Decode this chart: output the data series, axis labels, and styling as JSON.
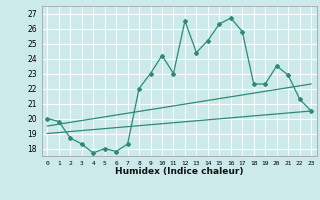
{
  "xlabel": "Humidex (Indice chaleur)",
  "bg_color": "#cceaea",
  "grid_color": "#ffffff",
  "line_color": "#2d8b72",
  "xlim": [
    -0.5,
    23.5
  ],
  "ylim": [
    17.5,
    27.5
  ],
  "xticks": [
    0,
    1,
    2,
    3,
    4,
    5,
    6,
    7,
    8,
    9,
    10,
    11,
    12,
    13,
    14,
    15,
    16,
    17,
    18,
    19,
    20,
    21,
    22,
    23
  ],
  "yticks": [
    18,
    19,
    20,
    21,
    22,
    23,
    24,
    25,
    26,
    27
  ],
  "main_x": [
    0,
    1,
    2,
    3,
    4,
    5,
    6,
    7,
    8,
    9,
    10,
    11,
    12,
    13,
    14,
    15,
    16,
    17,
    18,
    19,
    20,
    21,
    22,
    23
  ],
  "main_y": [
    20.0,
    19.8,
    18.7,
    18.3,
    17.7,
    18.0,
    17.8,
    18.3,
    22.0,
    23.0,
    24.2,
    23.0,
    26.5,
    24.4,
    25.2,
    26.3,
    26.7,
    25.8,
    22.3,
    22.3,
    23.5,
    22.9,
    21.3,
    20.5
  ],
  "trend1_x": [
    0,
    23
  ],
  "trend1_y": [
    19.5,
    22.3
  ],
  "trend2_x": [
    0,
    23
  ],
  "trend2_y": [
    19.0,
    20.5
  ]
}
